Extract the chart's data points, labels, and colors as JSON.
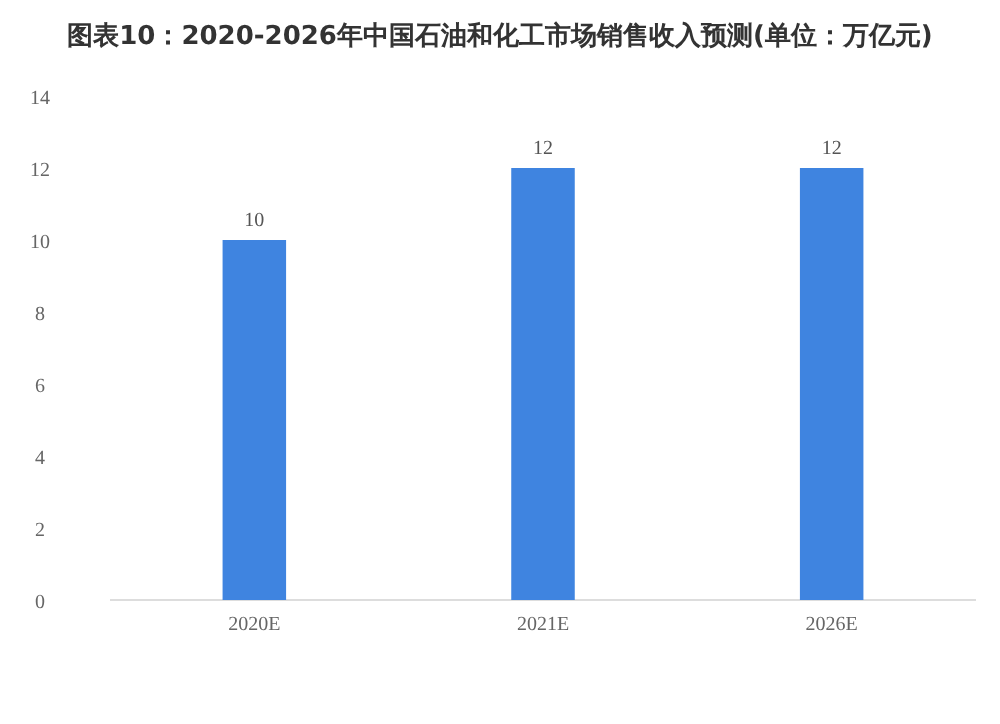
{
  "chart_data": {
    "type": "bar",
    "title": "图表10：2020-2026年中国石油和化工市场销售收入预测(单位：万亿元)",
    "categories": [
      "2020E",
      "2021E",
      "2026E"
    ],
    "values": [
      10,
      12,
      12
    ],
    "color": "#3f84e0",
    "ylim": [
      0,
      14
    ],
    "yticks": [
      0,
      2,
      4,
      6,
      8,
      10,
      12,
      14
    ],
    "data_labels": true,
    "grid": false
  }
}
